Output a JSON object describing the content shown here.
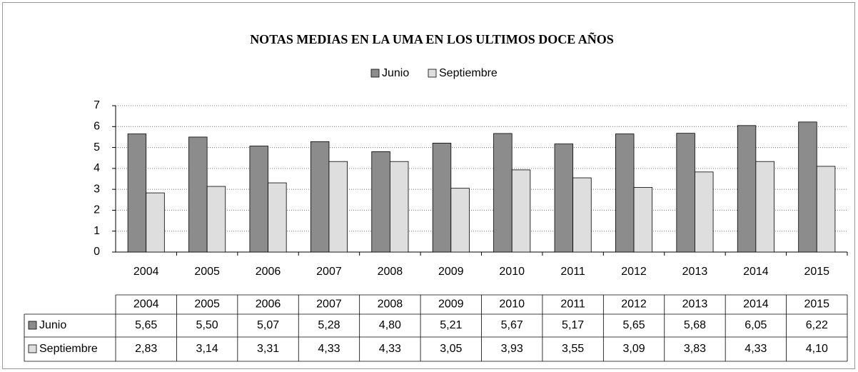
{
  "chart_data": {
    "type": "bar",
    "title": "NOTAS MEDIAS EN LA UMA EN LOS ULTIMOS DOCE AÑOS",
    "categories": [
      "2004",
      "2005",
      "2006",
      "2007",
      "2008",
      "2009",
      "2010",
      "2011",
      "2012",
      "2013",
      "2014",
      "2015"
    ],
    "series": [
      {
        "name": "Junio",
        "color": "#8c8c8c",
        "values": [
          5.65,
          5.5,
          5.07,
          5.28,
          4.8,
          5.21,
          5.67,
          5.17,
          5.65,
          5.68,
          6.05,
          6.22
        ],
        "value_labels": [
          "5,65",
          "5,50",
          "5,07",
          "5,28",
          "4,80",
          "5,21",
          "5,67",
          "5,17",
          "5,65",
          "5,68",
          "6,05",
          "6,22"
        ]
      },
      {
        "name": "Septiembre",
        "color": "#dedede",
        "values": [
          2.83,
          3.14,
          3.31,
          4.33,
          4.33,
          3.05,
          3.93,
          3.55,
          3.09,
          3.83,
          4.33,
          4.1
        ],
        "value_labels": [
          "2,83",
          "3,14",
          "3,31",
          "4,33",
          "4,33",
          "3,05",
          "3,93",
          "3,55",
          "3,09",
          "3,83",
          "4,33",
          "4,10"
        ]
      }
    ],
    "ylim": [
      0,
      7
    ],
    "yticks": [
      0,
      1,
      2,
      3,
      4,
      5,
      6,
      7
    ],
    "grid": true,
    "legend": "top"
  }
}
